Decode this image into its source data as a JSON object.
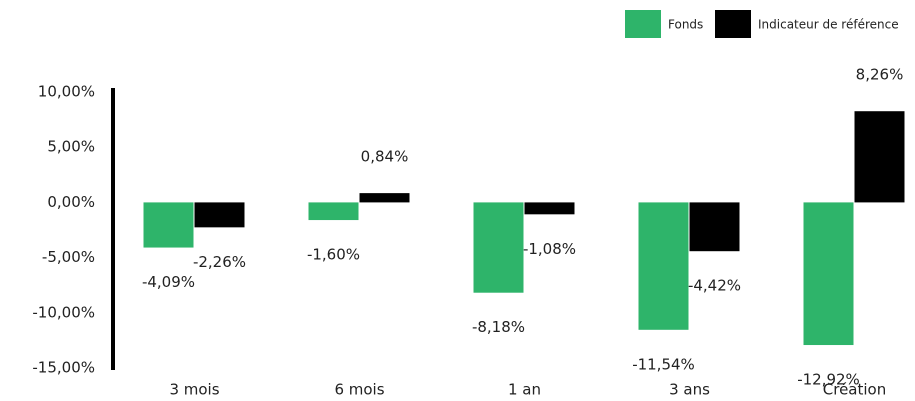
{
  "chart_data": {
    "type": "bar",
    "categories": [
      "3 mois",
      "6 mois",
      "1 an",
      "3 ans",
      "Création"
    ],
    "series": [
      {
        "name": "Fonds",
        "color": "#2eb46a",
        "values": [
          -4.09,
          -1.6,
          -8.18,
          -11.54,
          -12.92
        ],
        "value_labels": [
          "-4,09%",
          "-1,60%",
          "-8,18%",
          "-11,54%",
          "-12,92%"
        ]
      },
      {
        "name": "Indicateur de référence",
        "color": "#000000",
        "values": [
          -2.26,
          0.84,
          -1.08,
          -4.42,
          8.26
        ],
        "value_labels": [
          "-2,26%",
          "0,84%",
          "-1,08%",
          "-4,42%",
          "8,26%"
        ]
      }
    ],
    "ylim": [
      -15,
      10
    ],
    "yticks": [
      {
        "value": -15,
        "label": "-15,00%"
      },
      {
        "value": -10,
        "label": "-10,00%"
      },
      {
        "value": -5,
        "label": "-5,00%"
      },
      {
        "value": 0,
        "label": "0,00%"
      },
      {
        "value": 5,
        "label": "5,00%"
      },
      {
        "value": 10,
        "label": "10,00%"
      }
    ],
    "legend": "top-right"
  }
}
